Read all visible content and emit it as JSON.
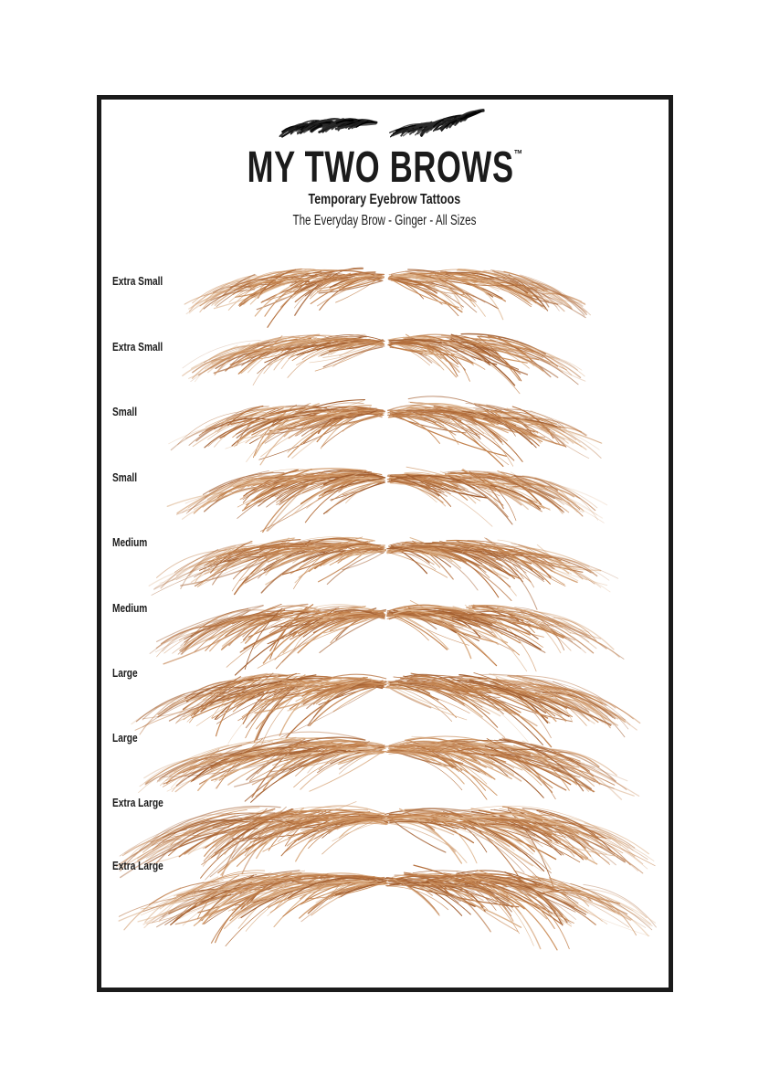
{
  "header": {
    "brand": "MY TWO BROWS",
    "trademark": "TM",
    "tagline": "Temporary Eyebrow Tattoos",
    "product_line": "The Everyday Brow - Ginger - All Sizes"
  },
  "rows": [
    {
      "label": "Extra Small"
    },
    {
      "label": "Extra Small"
    },
    {
      "label": "Small"
    },
    {
      "label": "Small"
    },
    {
      "label": "Medium"
    },
    {
      "label": "Medium"
    },
    {
      "label": "Large"
    },
    {
      "label": "Large"
    },
    {
      "label": "Extra Large"
    },
    {
      "label": "Extra Large"
    }
  ],
  "colors": {
    "ink": "#1b1b1b",
    "page_background": "#ffffff",
    "ginger_palette": [
      "#a25e30",
      "#b5713f",
      "#c2814c",
      "#cf9665",
      "#dcb28b"
    ],
    "logo_ink_palette": [
      "#000000",
      "#1a1a1a",
      "#2b2b2b"
    ]
  }
}
